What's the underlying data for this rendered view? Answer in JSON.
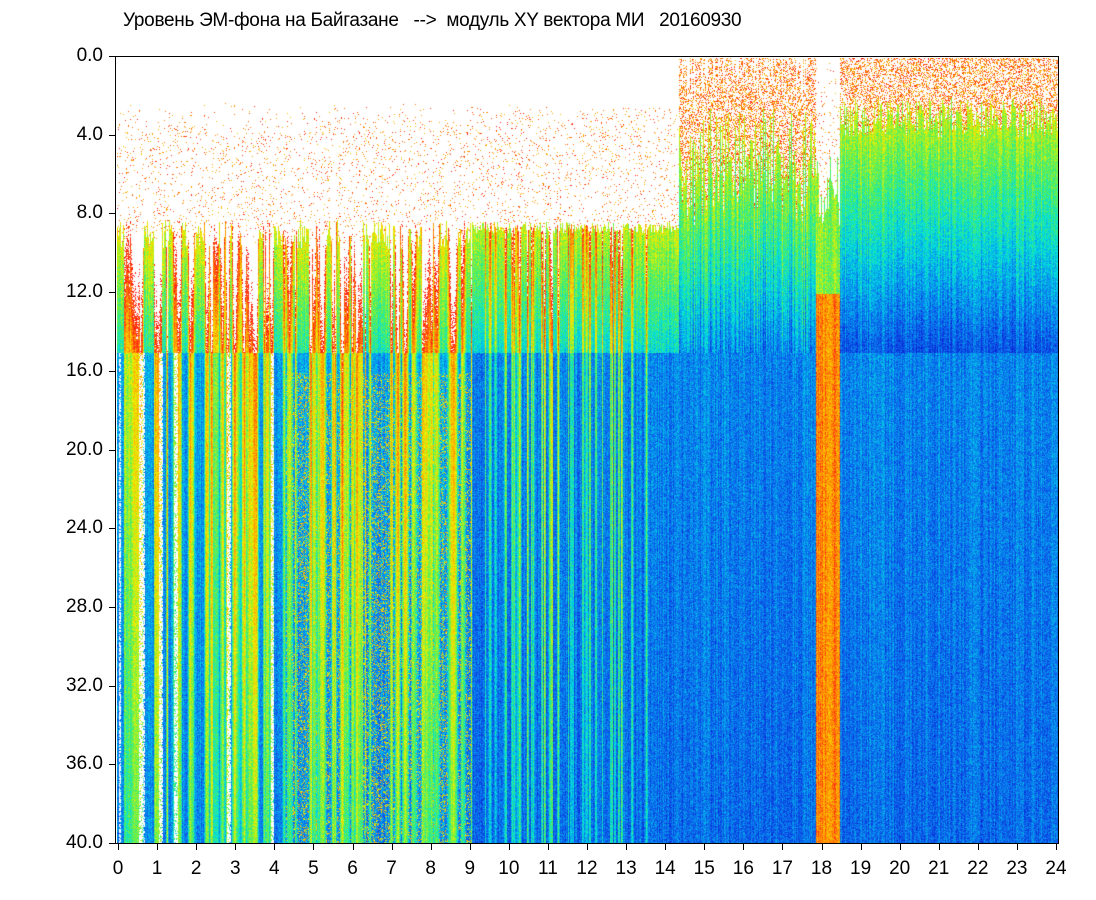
{
  "chart_data": {
    "type": "heatmap",
    "title": "Уровень ЭМ-фона на Байгазане   -->  модуль XY вектора МИ   20160930",
    "xlabel": "",
    "ylabel": "",
    "x_ticks": [
      "0",
      "1",
      "2",
      "3",
      "4",
      "5",
      "6",
      "7",
      "8",
      "9",
      "10",
      "11",
      "12",
      "13",
      "14",
      "15",
      "16",
      "17",
      "18",
      "19",
      "20",
      "21",
      "22",
      "23",
      "24"
    ],
    "y_ticks": [
      "0.0",
      "4.0",
      "8.0",
      "12.0",
      "16.0",
      "20.0",
      "24.0",
      "28.0",
      "32.0",
      "36.0",
      "40.0"
    ],
    "xlim": [
      0,
      24
    ],
    "ylim": [
      0,
      40
    ],
    "y_inverted": true,
    "colormap": [
      "#ffffff",
      "#ff1a1a",
      "#ff9a00",
      "#f0f000",
      "#55f055",
      "#00e0e0",
      "#0a7ef0",
      "#0a28d8"
    ],
    "background_color": "#ffffff",
    "grid": false,
    "legend": "none"
  }
}
